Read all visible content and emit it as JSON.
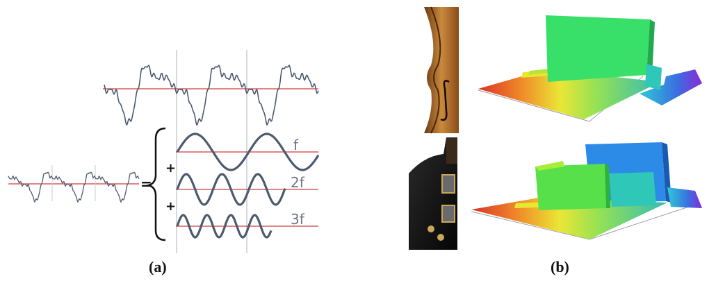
{
  "panel_a": {
    "caption": "(a)",
    "equals": "=",
    "plus": "+",
    "labels": [
      "f",
      "2f",
      "3f"
    ],
    "colors": {
      "wave": "#4c5a6e",
      "axis": "#d33a3a",
      "guide": "#c8ccd2"
    }
  },
  "panel_b": {
    "caption": "(b)",
    "rows": [
      {
        "instrument": "violin"
      },
      {
        "instrument": "electric-guitar"
      }
    ]
  }
}
